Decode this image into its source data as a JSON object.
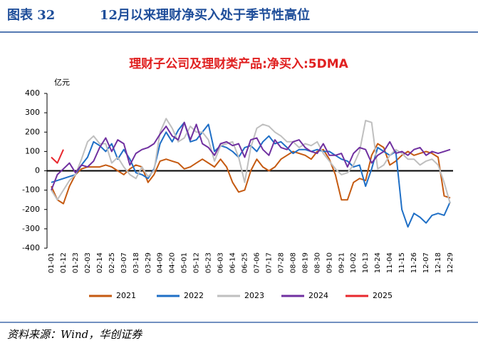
{
  "header": {
    "label": "图表 32",
    "title": "12月以来理财净买入处于季节性高位"
  },
  "chart_data": {
    "type": "line",
    "title": "理财子公司及理财类产品:净买入:5DMA",
    "y_unit": "亿元",
    "categories": [
      "01-01",
      null,
      "01-12",
      null,
      "01-23",
      null,
      "02-03",
      null,
      "02-14",
      null,
      "02-25",
      null,
      "03-07",
      null,
      "03-18",
      null,
      "03-29",
      null,
      "04-09",
      null,
      "04-20",
      null,
      "05-01",
      null,
      "05-12",
      null,
      "05-23",
      null,
      "06-03",
      null,
      "06-14",
      null,
      "06-25",
      null,
      "07-06",
      null,
      "07-17",
      null,
      "07-28",
      null,
      "08-08",
      null,
      "08-19",
      null,
      "08-30",
      null,
      "09-10",
      null,
      "09-21",
      null,
      "10-02",
      null,
      "10-13",
      null,
      "10-24",
      null,
      "11-04",
      null,
      "11-15",
      null,
      "11-26",
      null,
      "12-07",
      null,
      "12-18",
      null,
      "12-29"
    ],
    "series": [
      {
        "name": "2021",
        "color": "#c55a11",
        "values": [
          -80,
          -150,
          -170,
          -80,
          -20,
          10,
          20,
          20,
          20,
          30,
          20,
          0,
          -20,
          10,
          30,
          20,
          -60,
          -20,
          50,
          60,
          50,
          40,
          10,
          20,
          40,
          60,
          40,
          20,
          60,
          20,
          -60,
          -110,
          -100,
          0,
          60,
          20,
          0,
          20,
          60,
          80,
          100,
          90,
          80,
          60,
          100,
          110,
          60,
          -20,
          -150,
          -150,
          -60,
          -40,
          -50,
          80,
          140,
          120,
          30,
          50,
          80,
          100,
          80,
          90,
          100,
          90,
          70,
          -130,
          -140
        ]
      },
      {
        "name": "2022",
        "color": "#1f6fc6",
        "values": [
          -60,
          -50,
          -40,
          -30,
          -20,
          30,
          70,
          150,
          130,
          100,
          140,
          60,
          110,
          60,
          -10,
          -20,
          -40,
          10,
          140,
          200,
          150,
          210,
          250,
          150,
          160,
          200,
          240,
          100,
          130,
          120,
          100,
          70,
          120,
          130,
          100,
          150,
          180,
          140,
          150,
          120,
          90,
          110,
          110,
          100,
          110,
          100,
          100,
          80,
          60,
          50,
          20,
          30,
          -80,
          10,
          120,
          100,
          80,
          100,
          -200,
          -290,
          -220,
          -240,
          -270,
          -230,
          -220,
          -230,
          -160
        ]
      },
      {
        "name": "2023",
        "color": "#bfbfbf",
        "values": [
          -100,
          -150,
          -100,
          -50,
          -20,
          60,
          150,
          180,
          140,
          140,
          40,
          70,
          20,
          -20,
          -40,
          20,
          -30,
          0,
          200,
          270,
          220,
          150,
          170,
          230,
          200,
          200,
          160,
          50,
          130,
          140,
          150,
          70,
          -60,
          120,
          220,
          240,
          230,
          200,
          180,
          150,
          150,
          120,
          140,
          130,
          150,
          90,
          50,
          10,
          -20,
          -10,
          30,
          100,
          260,
          250,
          10,
          30,
          80,
          110,
          90,
          60,
          60,
          30,
          50,
          60,
          30,
          -60,
          -170
        ]
      },
      {
        "name": "2024",
        "color": "#7030a0",
        "values": [
          -100,
          -20,
          10,
          40,
          -10,
          30,
          20,
          50,
          120,
          170,
          100,
          160,
          140,
          30,
          90,
          110,
          120,
          140,
          190,
          230,
          180,
          160,
          250,
          160,
          240,
          140,
          120,
          80,
          140,
          150,
          130,
          140,
          70,
          160,
          170,
          110,
          80,
          160,
          120,
          110,
          150,
          160,
          120,
          100,
          90,
          140,
          80,
          80,
          90,
          20,
          90,
          120,
          110,
          40,
          80,
          100,
          150,
          90,
          100,
          80,
          110,
          120,
          80,
          100,
          90,
          100,
          110
        ]
      },
      {
        "name": "2025",
        "color": "#e8282e",
        "values": [
          70,
          40,
          110,
          null,
          null,
          null,
          null,
          null,
          null,
          null,
          null,
          null,
          null,
          null,
          null,
          null,
          null,
          null,
          null,
          null,
          null,
          null,
          null,
          null,
          null,
          null,
          null,
          null,
          null,
          null,
          null,
          null,
          null,
          null,
          null,
          null,
          null,
          null,
          null,
          null,
          null,
          null,
          null,
          null,
          null,
          null,
          null,
          null,
          null,
          null,
          null,
          null,
          null,
          null,
          null,
          null,
          null,
          null,
          null,
          null,
          null,
          null,
          null,
          null,
          null,
          null,
          null
        ]
      }
    ],
    "ylim": [
      -400,
      400
    ],
    "yticks": [
      -400,
      -300,
      -200,
      -100,
      0,
      100,
      200,
      300,
      400
    ],
    "legend": "bottom"
  },
  "source": "资料来源：Wind，华创证券"
}
